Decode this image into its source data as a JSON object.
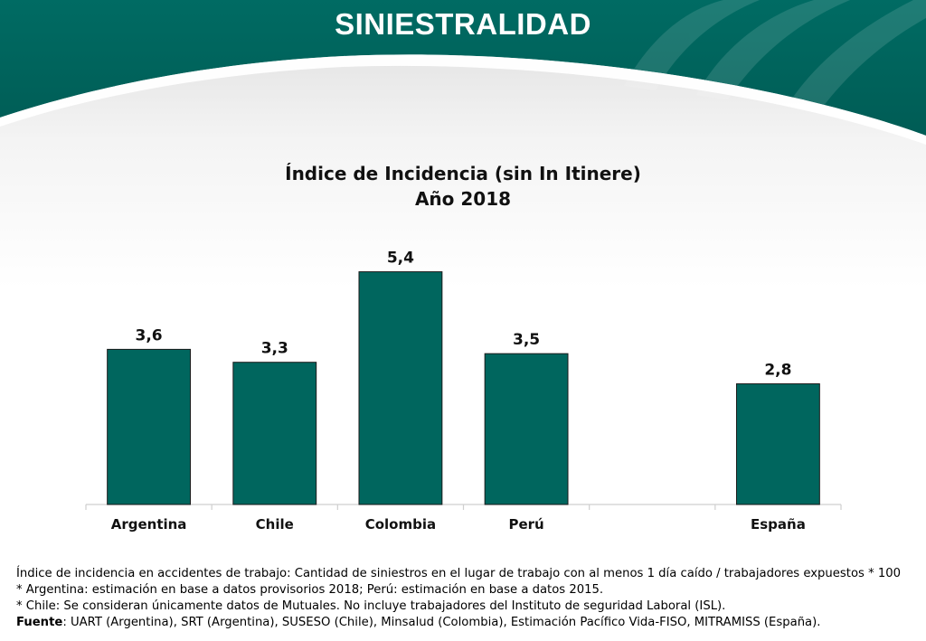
{
  "slide_title": "SINIESTRALIDAD",
  "chart_data": {
    "type": "bar",
    "title": "Índice de Incidencia (sin In Itinere)",
    "subtitle": "Año 2018",
    "categories": [
      "Argentina",
      "Chile",
      "Colombia",
      "Perú",
      "",
      "España"
    ],
    "values": [
      3.6,
      3.3,
      5.4,
      3.5,
      null,
      2.8
    ],
    "value_labels": [
      "3,6",
      "3,3",
      "5,4",
      "3,5",
      "",
      "2,8"
    ],
    "ylim": [
      0,
      6
    ],
    "grid": false,
    "bar_color": "#00665e"
  },
  "notes": {
    "definition": "Índice de incidencia en accidentes de trabajo: Cantidad de siniestros en el lugar de trabajo con al menos 1 día caído / trabajadores expuestos * 100",
    "note_argentina": "* Argentina: estimación en base a datos provisorios 2018; Perú: estimación en base a datos 2015.",
    "note_chile": "* Chile: Se consideran únicamente datos de Mutuales. No incluye trabajadores del Instituto de seguridad Laboral (ISL).",
    "source_label": "Fuente",
    "source_text": ": UART (Argentina), SRT (Argentina), SUSESO (Chile), Minsalud (Colombia), Estimación Pacífico Vida-FISO, MITRAMISS (España)."
  },
  "colors": {
    "header_teal": "#00665e",
    "header_teal_dark": "#005a53"
  }
}
